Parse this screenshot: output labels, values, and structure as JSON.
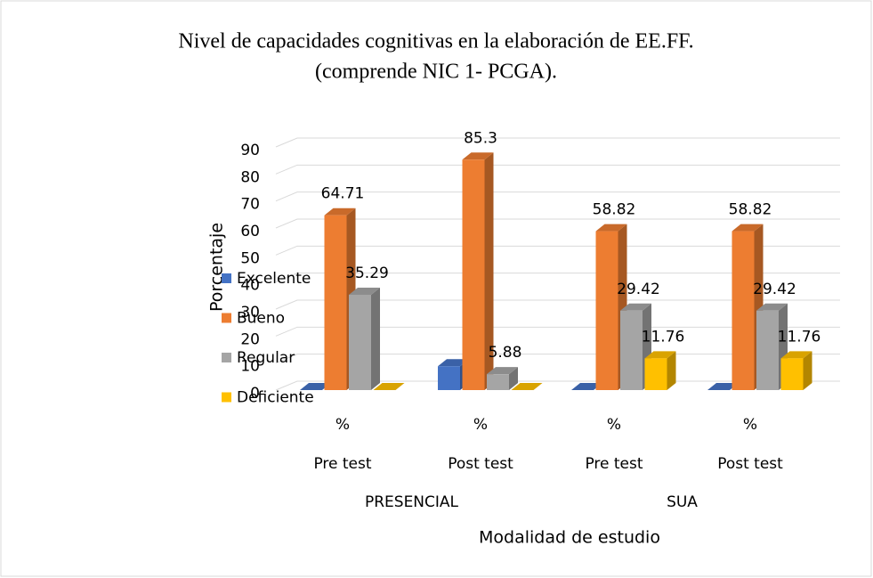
{
  "chart_data": {
    "type": "bar3d",
    "title": "Nivel de capacidades cognitivas en la elaboración de EE.FF.",
    "subtitle": "(comprende NIC 1- PCGA).",
    "y_label": "Porcentaje",
    "x_label": "Modalidad de estudio",
    "categories": [
      "%",
      "%",
      "%",
      "%"
    ],
    "tests": [
      "Pre test",
      "Post test",
      "Pre test",
      "Post test"
    ],
    "modalities": [
      "PRESENCIAL",
      "SUA"
    ],
    "series": [
      {
        "name": "Excelente",
        "color": "#4472c4",
        "data_labels": false,
        "values": [
          0,
          8.82,
          0,
          0
        ]
      },
      {
        "name": "Bueno",
        "color": "#ed7d31",
        "data_labels": true,
        "values": [
          64.71,
          85.3,
          58.82,
          58.82
        ]
      },
      {
        "name": "Regular",
        "color": "#a5a5a5",
        "data_labels": true,
        "values": [
          35.29,
          5.88,
          29.42,
          29.42
        ]
      },
      {
        "name": "Deficiente",
        "color": "#ffc000",
        "data_labels": true,
        "values": [
          0,
          0,
          11.76,
          11.76
        ]
      }
    ],
    "ylim": [
      0,
      90
    ],
    "yticks": [
      0,
      10,
      20,
      30,
      40,
      50,
      60,
      70,
      80,
      90
    ],
    "grid": true,
    "legend": "left"
  }
}
